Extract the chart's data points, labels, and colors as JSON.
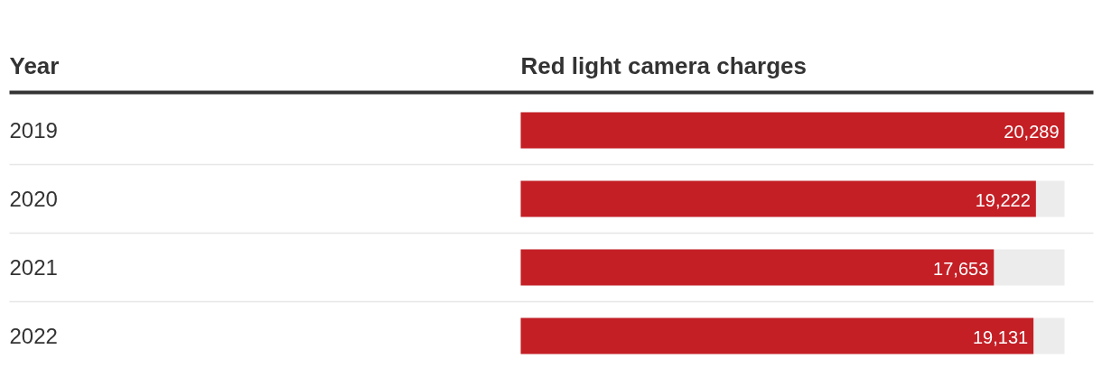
{
  "chart_data": {
    "type": "bar",
    "orientation": "horizontal",
    "ylabel": "Year",
    "xlabel": "Red light camera charges",
    "categories": [
      "2019",
      "2020",
      "2021",
      "2022"
    ],
    "values": [
      20289,
      19222,
      17653,
      19131
    ],
    "value_labels": [
      "20,289",
      "19,222",
      "17,653",
      "19,131"
    ],
    "color": "#c41f25"
  }
}
